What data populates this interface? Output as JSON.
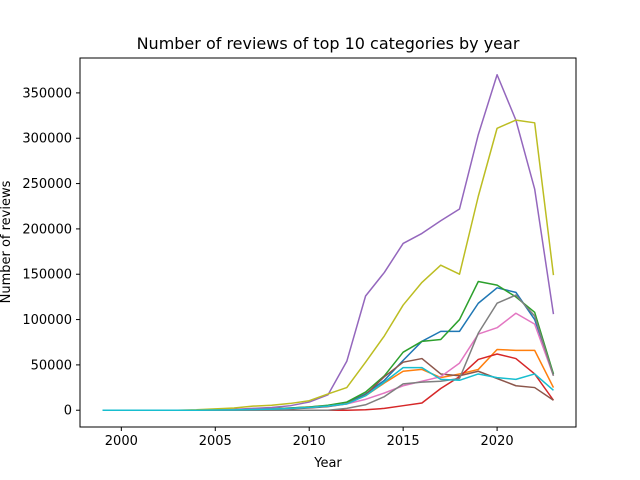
{
  "chart_data": {
    "type": "line",
    "title": "Number of reviews of top 10 categories by year",
    "xlabel": "Year",
    "ylabel": "Number of reviews",
    "xlim": [
      1997.8,
      2024.2
    ],
    "ylim": [
      -18500,
      388500
    ],
    "xticks": [
      2000,
      2005,
      2010,
      2015,
      2020
    ],
    "yticks": [
      0,
      50000,
      100000,
      150000,
      200000,
      250000,
      300000,
      350000
    ],
    "ytick_labels": [
      "0",
      "50000",
      "100000",
      "150000",
      "200000",
      "250000",
      "300000",
      "350000"
    ],
    "grid": false,
    "x": [
      1999,
      2000,
      2001,
      2002,
      2003,
      2004,
      2005,
      2006,
      2007,
      2008,
      2009,
      2010,
      2011,
      2012,
      2013,
      2014,
      2015,
      2016,
      2017,
      2018,
      2019,
      2020,
      2021,
      2022,
      2023
    ],
    "series": [
      {
        "color": "#1f77b4",
        "values": [
          0,
          0,
          0,
          0,
          0,
          0,
          300,
          600,
          1200,
          1600,
          2500,
          3500,
          5000,
          8000,
          18000,
          33000,
          55000,
          76000,
          87000,
          87000,
          118000,
          135000,
          130000,
          100000,
          40000
        ]
      },
      {
        "color": "#ff7f0e",
        "values": [
          0,
          0,
          0,
          0,
          0,
          0,
          300,
          600,
          1000,
          1400,
          2200,
          3500,
          5000,
          7500,
          16000,
          30000,
          43000,
          45000,
          36000,
          40000,
          45000,
          67000,
          66000,
          66000,
          25000
        ]
      },
      {
        "color": "#2ca02c",
        "values": [
          0,
          0,
          0,
          0,
          0,
          0,
          300,
          600,
          1200,
          1600,
          2500,
          3500,
          5500,
          9000,
          20000,
          38000,
          64000,
          76000,
          78000,
          100000,
          142000,
          138000,
          125000,
          108000,
          40000
        ]
      },
      {
        "color": "#d62728",
        "values": [
          0,
          0,
          0,
          0,
          0,
          0,
          0,
          0,
          0,
          0,
          0,
          0,
          0,
          0,
          500,
          2000,
          5000,
          8000,
          24000,
          37000,
          56000,
          62000,
          57000,
          40000,
          11000
        ]
      },
      {
        "color": "#9467bd",
        "values": [
          0,
          0,
          0,
          0,
          0,
          0,
          500,
          1000,
          2000,
          3000,
          5000,
          9000,
          17000,
          54000,
          126000,
          152000,
          184000,
          195000,
          209000,
          222000,
          304000,
          370000,
          320000,
          244000,
          106000
        ]
      },
      {
        "color": "#8c564b",
        "values": [
          0,
          0,
          0,
          0,
          0,
          0,
          200,
          400,
          700,
          900,
          1500,
          2500,
          4000,
          7000,
          17000,
          37000,
          53000,
          57000,
          40000,
          38000,
          43000,
          35000,
          27000,
          25000,
          11000
        ]
      },
      {
        "color": "#e377c2",
        "values": [
          0,
          0,
          0,
          0,
          0,
          0,
          200,
          500,
          800,
          1200,
          2000,
          3000,
          4500,
          7000,
          12000,
          19000,
          27000,
          32000,
          37000,
          52000,
          84000,
          91000,
          107000,
          95000,
          38000
        ]
      },
      {
        "color": "#7f7f7f",
        "values": [
          0,
          0,
          0,
          0,
          0,
          0,
          0,
          0,
          0,
          0,
          0,
          0,
          0,
          2000,
          6000,
          15000,
          29000,
          31000,
          32000,
          35000,
          85000,
          118000,
          127000,
          104000,
          38000
        ]
      },
      {
        "color": "#bcbd22",
        "values": [
          0,
          0,
          0,
          0,
          0,
          500,
          1500,
          2500,
          4500,
          5500,
          7500,
          10500,
          18000,
          25000,
          53000,
          82000,
          116000,
          141000,
          160000,
          150000,
          236000,
          311000,
          320000,
          317000,
          149000
        ]
      },
      {
        "color": "#17becf",
        "values": [
          0,
          0,
          0,
          0,
          0,
          0,
          200,
          400,
          800,
          1200,
          2000,
          3000,
          4500,
          7000,
          16000,
          31000,
          47000,
          47000,
          34000,
          33000,
          40000,
          36000,
          34000,
          40000,
          22000
        ]
      }
    ]
  }
}
